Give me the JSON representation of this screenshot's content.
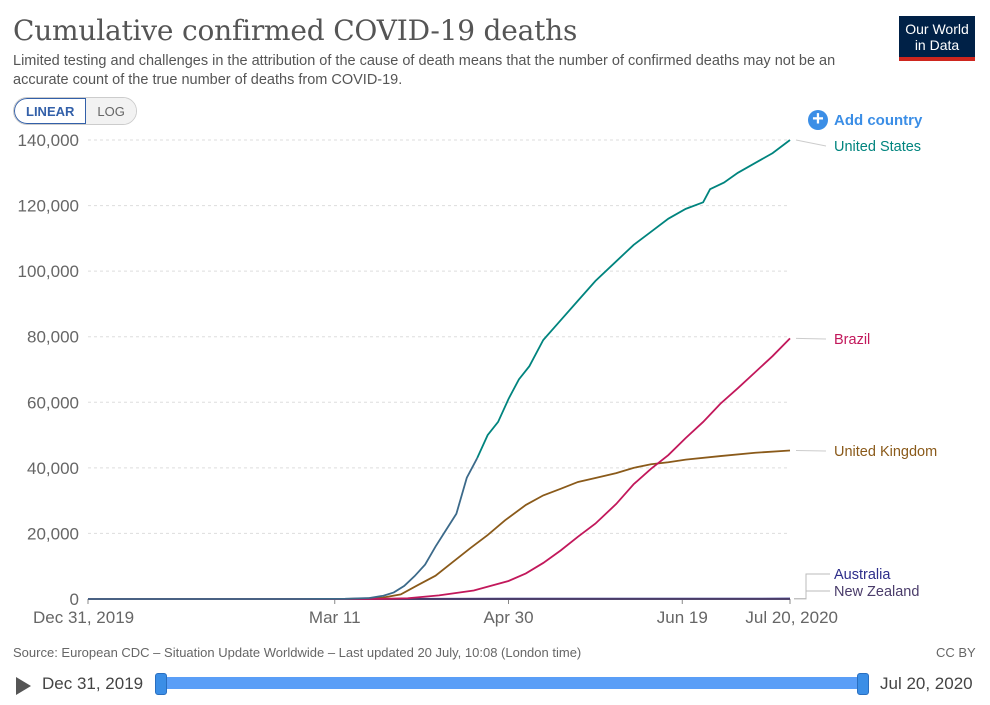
{
  "header": {
    "title": "Cumulative confirmed COVID-19 deaths",
    "subtitle": "Limited testing and challenges in the attribution of the cause of death means that the number of confirmed deaths may not be an accurate count of the true number of deaths from COVID-19.",
    "logo_line1": "Our World",
    "logo_line2": "in Data"
  },
  "controls": {
    "linear_label": "LINEAR",
    "log_label": "LOG",
    "add_country_label": "Add country"
  },
  "colors": {
    "us": "#00847e",
    "us_early": "#3c6a8a",
    "brazil": "#c2185b",
    "uk": "#8a5a1a",
    "australia": "#2d2d8a",
    "new_zealand": "#4a3c6a",
    "grid": "#dddddd"
  },
  "chart_data": {
    "type": "line",
    "title": "Cumulative confirmed COVID-19 deaths",
    "ylim": [
      0,
      140000
    ],
    "y_ticks": [
      0,
      20000,
      40000,
      60000,
      80000,
      100000,
      120000,
      140000
    ],
    "y_tick_labels": [
      "0",
      "20,000",
      "40,000",
      "60,000",
      "80,000",
      "100,000",
      "120,000",
      "140,000"
    ],
    "x_range": [
      "2019-12-31",
      "2020-07-20"
    ],
    "x_ticks": [
      "2019-12-31",
      "2020-03-11",
      "2020-04-30",
      "2020-06-19",
      "2020-07-20"
    ],
    "x_tick_labels": [
      "Dec 31, 2019",
      "Mar 11",
      "Apr 30",
      "Jun 19",
      "Jul 20, 2020"
    ],
    "grid": true,
    "legend": "right-end labels",
    "series": [
      {
        "name": "United States",
        "points": [
          [
            "2019-12-31",
            0
          ],
          [
            "2020-02-29",
            1
          ],
          [
            "2020-03-14",
            50
          ],
          [
            "2020-03-21",
            300
          ],
          [
            "2020-03-25",
            1000
          ],
          [
            "2020-03-28",
            2000
          ],
          [
            "2020-03-31",
            4000
          ],
          [
            "2020-04-03",
            7000
          ],
          [
            "2020-04-06",
            10500
          ],
          [
            "2020-04-09",
            16000
          ],
          [
            "2020-04-12",
            21000
          ],
          [
            "2020-04-15",
            26000
          ],
          [
            "2020-04-18",
            37000
          ],
          [
            "2020-04-21",
            43000
          ],
          [
            "2020-04-24",
            50000
          ],
          [
            "2020-04-27",
            54000
          ],
          [
            "2020-04-30",
            61000
          ],
          [
            "2020-05-03",
            67000
          ],
          [
            "2020-05-06",
            71000
          ],
          [
            "2020-05-10",
            79000
          ],
          [
            "2020-05-15",
            85000
          ],
          [
            "2020-05-20",
            91000
          ],
          [
            "2020-05-25",
            97000
          ],
          [
            "2020-05-31",
            103000
          ],
          [
            "2020-06-05",
            108000
          ],
          [
            "2020-06-10",
            112000
          ],
          [
            "2020-06-15",
            116000
          ],
          [
            "2020-06-20",
            119000
          ],
          [
            "2020-06-25",
            121000
          ],
          [
            "2020-06-27",
            125000
          ],
          [
            "2020-07-01",
            127000
          ],
          [
            "2020-07-05",
            130000
          ],
          [
            "2020-07-10",
            133000
          ],
          [
            "2020-07-15",
            136000
          ],
          [
            "2020-07-20",
            140000
          ]
        ]
      },
      {
        "name": "Brazil",
        "points": [
          [
            "2019-12-31",
            0
          ],
          [
            "2020-03-17",
            1
          ],
          [
            "2020-03-25",
            60
          ],
          [
            "2020-04-01",
            240
          ],
          [
            "2020-04-10",
            1100
          ],
          [
            "2020-04-20",
            2600
          ],
          [
            "2020-04-30",
            5500
          ],
          [
            "2020-05-05",
            7800
          ],
          [
            "2020-05-10",
            11000
          ],
          [
            "2020-05-15",
            14800
          ],
          [
            "2020-05-20",
            19000
          ],
          [
            "2020-05-25",
            23000
          ],
          [
            "2020-05-31",
            29000
          ],
          [
            "2020-06-05",
            35000
          ],
          [
            "2020-06-10",
            39700
          ],
          [
            "2020-06-15",
            43900
          ],
          [
            "2020-06-20",
            49100
          ],
          [
            "2020-06-25",
            54000
          ],
          [
            "2020-06-30",
            59600
          ],
          [
            "2020-07-05",
            64300
          ],
          [
            "2020-07-10",
            69200
          ],
          [
            "2020-07-15",
            74100
          ],
          [
            "2020-07-20",
            79500
          ]
        ]
      },
      {
        "name": "United Kingdom",
        "points": [
          [
            "2019-12-31",
            0
          ],
          [
            "2020-03-06",
            1
          ],
          [
            "2020-03-15",
            35
          ],
          [
            "2020-03-20",
            180
          ],
          [
            "2020-03-25",
            460
          ],
          [
            "2020-03-30",
            1400
          ],
          [
            "2020-04-04",
            4300
          ],
          [
            "2020-04-09",
            7100
          ],
          [
            "2020-04-14",
            11300
          ],
          [
            "2020-04-19",
            15500
          ],
          [
            "2020-04-24",
            19500
          ],
          [
            "2020-04-29",
            24000
          ],
          [
            "2020-05-05",
            28700
          ],
          [
            "2020-05-10",
            31600
          ],
          [
            "2020-05-15",
            33600
          ],
          [
            "2020-05-20",
            35700
          ],
          [
            "2020-05-25",
            36900
          ],
          [
            "2020-05-31",
            38400
          ],
          [
            "2020-06-05",
            40000
          ],
          [
            "2020-06-10",
            41100
          ],
          [
            "2020-06-15",
            41700
          ],
          [
            "2020-06-20",
            42500
          ],
          [
            "2020-06-30",
            43600
          ],
          [
            "2020-07-10",
            44600
          ],
          [
            "2020-07-20",
            45300
          ]
        ]
      },
      {
        "name": "Australia",
        "points": [
          [
            "2019-12-31",
            0
          ],
          [
            "2020-03-01",
            1
          ],
          [
            "2020-04-30",
            93
          ],
          [
            "2020-07-20",
            128
          ]
        ]
      },
      {
        "name": "New Zealand",
        "points": [
          [
            "2019-12-31",
            0
          ],
          [
            "2020-03-29",
            1
          ],
          [
            "2020-04-30",
            19
          ],
          [
            "2020-07-20",
            22
          ]
        ]
      }
    ]
  },
  "footer": {
    "source": "Source: European CDC – Situation Update Worldwide – Last updated 20 July, 10:08 (London time)",
    "license": "CC BY"
  },
  "timeline": {
    "start": "Dec 31, 2019",
    "end": "Jul 20, 2020"
  }
}
